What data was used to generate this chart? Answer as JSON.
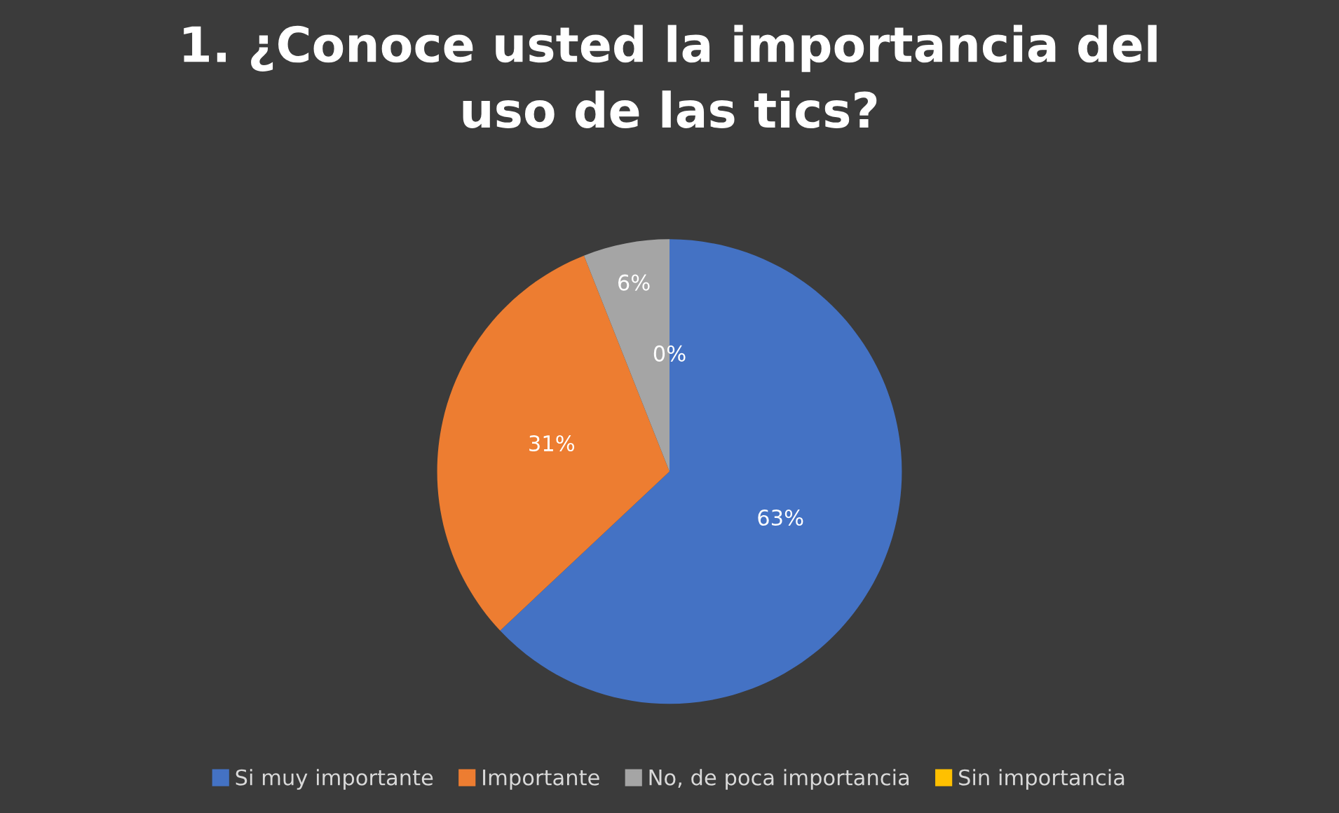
{
  "chart_data": {
    "type": "pie",
    "title": "1. ¿Conoce usted la importancia del uso de las tics?",
    "categories": [
      "Si muy importante",
      "Importante",
      "No, de poca importancia",
      "Sin importancia"
    ],
    "values": [
      63,
      31,
      6,
      0
    ],
    "colors": [
      "#4472c4",
      "#ed7d31",
      "#a5a5a5",
      "#ffc000"
    ],
    "value_labels": [
      "63%",
      "31%",
      "6%",
      "0%"
    ],
    "legend": "bottom"
  }
}
